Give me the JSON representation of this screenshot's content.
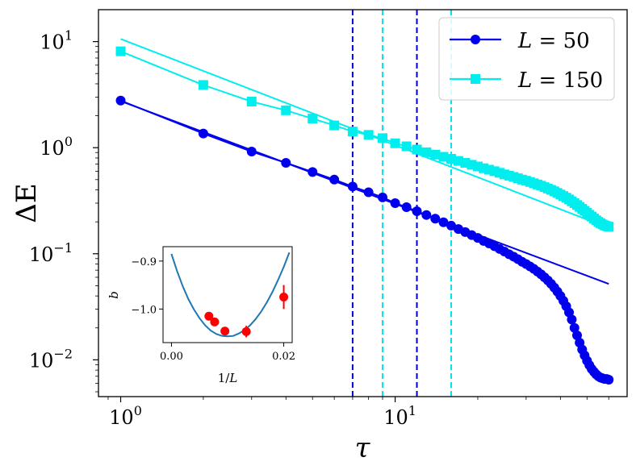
{
  "chart_data": {
    "type": "line",
    "xscale": "log",
    "yscale": "log",
    "xlim": [
      0.83,
      70
    ],
    "ylim": [
      0.0045,
      20
    ],
    "xlabel": "τ",
    "ylabel": "ΔE",
    "x_ticks": [
      {
        "value": 1,
        "mantissa": "10",
        "exp": "0"
      },
      {
        "value": 10,
        "mantissa": "10",
        "exp": "1"
      }
    ],
    "y_ticks": [
      {
        "value": 10,
        "mantissa": "10",
        "exp": "1"
      },
      {
        "value": 1,
        "mantissa": "10",
        "exp": "0"
      },
      {
        "value": 0.1,
        "mantissa": "10",
        "exp": "−1"
      },
      {
        "value": 0.01,
        "mantissa": "10",
        "exp": "−2"
      }
    ],
    "legend": {
      "position": "top-right",
      "entries": [
        {
          "var": "L",
          "rest": " = 50",
          "series": "L50"
        },
        {
          "var": "L",
          "rest": " = 150",
          "series": "L150"
        }
      ]
    },
    "series": [
      {
        "id": "L50",
        "name": "L = 50",
        "color": "#0000ee",
        "marker": "circle",
        "x_start": 1,
        "x_end": 60,
        "values": [
          2.78,
          1.36,
          0.92,
          0.72,
          0.59,
          0.5,
          0.43,
          0.38,
          0.34,
          0.3,
          0.275,
          0.252,
          0.232,
          0.214,
          0.198,
          0.184,
          0.171,
          0.16,
          0.15,
          0.141,
          0.132,
          0.125,
          0.118,
          0.111,
          0.105,
          0.099,
          0.094,
          0.089,
          0.084,
          0.08,
          0.076,
          0.072,
          0.068,
          0.064,
          0.06,
          0.056,
          0.052,
          0.048,
          0.044,
          0.04,
          0.036,
          0.032,
          0.028,
          0.024,
          0.02,
          0.017,
          0.0145,
          0.0125,
          0.011,
          0.0098,
          0.0089,
          0.0082,
          0.0077,
          0.0073,
          0.007,
          0.0068,
          0.0067,
          0.0066,
          0.0066,
          0.0065
        ]
      },
      {
        "id": "L150",
        "name": "L = 150",
        "color": "#00eeee",
        "marker": "square",
        "x_start": 1,
        "x_end": 60,
        "values": [
          8.1,
          3.9,
          2.72,
          2.25,
          1.88,
          1.62,
          1.42,
          1.32,
          1.23,
          1.1,
          1.03,
          0.96,
          0.905,
          0.86,
          0.82,
          0.785,
          0.75,
          0.72,
          0.69,
          0.665,
          0.64,
          0.62,
          0.6,
          0.58,
          0.56,
          0.545,
          0.53,
          0.515,
          0.5,
          0.488,
          0.475,
          0.462,
          0.45,
          0.438,
          0.425,
          0.412,
          0.4,
          0.388,
          0.375,
          0.362,
          0.35,
          0.338,
          0.325,
          0.312,
          0.3,
          0.288,
          0.276,
          0.265,
          0.254,
          0.243,
          0.233,
          0.224,
          0.215,
          0.207,
          0.2,
          0.194,
          0.189,
          0.185,
          0.182,
          0.18
        ]
      }
    ],
    "fit_lines": [
      {
        "series": "L50",
        "x": [
          1,
          60
        ],
        "y": [
          2.75,
          0.052
        ]
      },
      {
        "series": "L150",
        "x": [
          1,
          60
        ],
        "y": [
          10.6,
          0.175
        ]
      }
    ],
    "vlines": [
      {
        "x": 7,
        "color": "#0000cc"
      },
      {
        "x": 12,
        "color": "#0000cc"
      },
      {
        "x": 9,
        "color": "#00e5ee"
      },
      {
        "x": 16,
        "color": "#00e5ee"
      }
    ],
    "inset": {
      "xlabel": "1/L",
      "ylabel": "b",
      "xlim": [
        -0.0015,
        0.0215
      ],
      "ylim": [
        -1.07,
        -0.87
      ],
      "x_ticks": [
        {
          "value": 0.0,
          "label": "0.00"
        },
        {
          "value": 0.02,
          "label": "0.02"
        }
      ],
      "y_ticks": [
        {
          "value": -0.9,
          "label": "−0.9"
        },
        {
          "value": -1.0,
          "label": "−1.0"
        }
      ],
      "curve_color": "#1f77b4",
      "point_color": "#ff0000",
      "curve_x": [
        0.0,
        0.001,
        0.002,
        0.003,
        0.004,
        0.005,
        0.006,
        0.007,
        0.008,
        0.009,
        0.01,
        0.011,
        0.012,
        0.013,
        0.014,
        0.015,
        0.016,
        0.017,
        0.018,
        0.019,
        0.02,
        0.021
      ],
      "curve_y": [
        -0.885,
        -0.921,
        -0.952,
        -0.979,
        -1.001,
        -1.019,
        -1.034,
        -1.045,
        -1.052,
        -1.056,
        -1.057,
        -1.056,
        -1.051,
        -1.044,
        -1.034,
        -1.021,
        -1.005,
        -0.986,
        -0.964,
        -0.939,
        -0.912,
        -0.882
      ],
      "points": [
        {
          "x": 0.00667,
          "y": -1.015,
          "err": 0.006
        },
        {
          "x": 0.00769,
          "y": -1.027,
          "err": 0.006
        },
        {
          "x": 0.00952,
          "y": -1.046,
          "err": 0.006
        },
        {
          "x": 0.01333,
          "y": -1.047,
          "err": 0.012
        },
        {
          "x": 0.02,
          "y": -0.975,
          "err": 0.025
        }
      ]
    }
  }
}
